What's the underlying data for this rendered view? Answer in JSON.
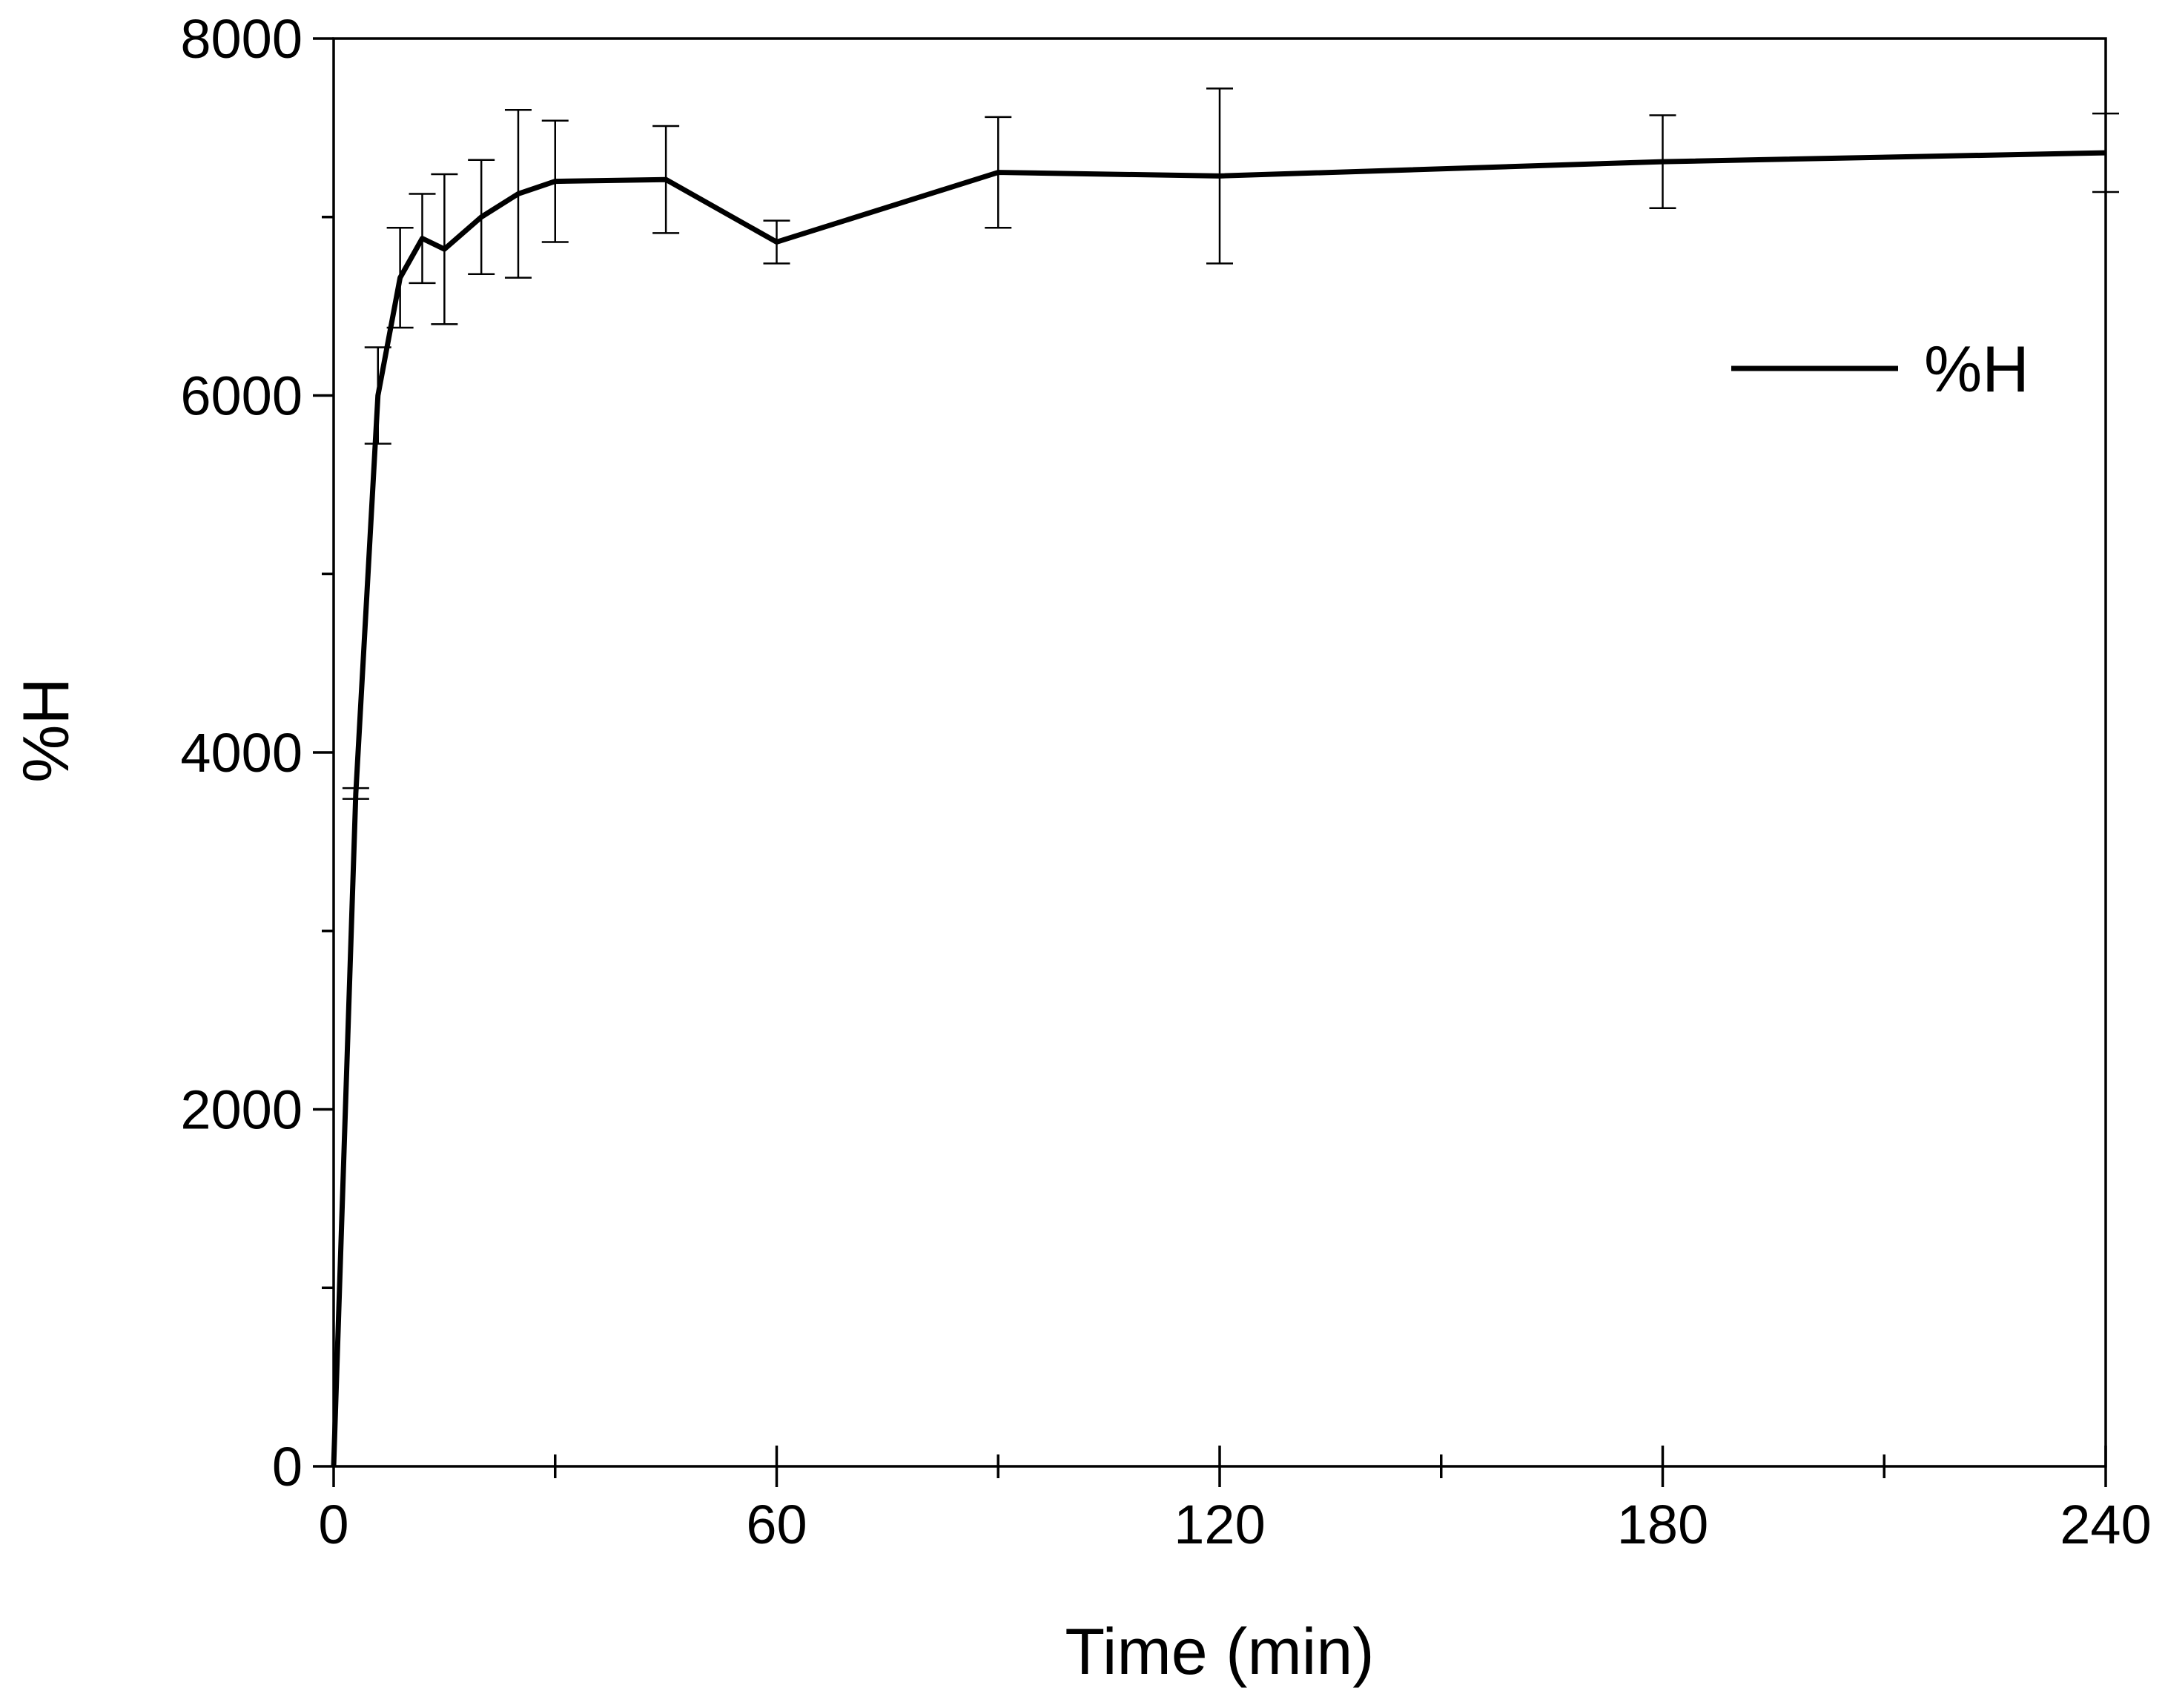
{
  "chart_data": {
    "type": "line",
    "xlabel": "Time (min)",
    "ylabel": "%H",
    "xlim": [
      0,
      240
    ],
    "ylim": [
      0,
      8000
    ],
    "x_ticks": [
      0,
      60,
      120,
      180,
      240
    ],
    "y_ticks": [
      0,
      2000,
      4000,
      6000,
      8000
    ],
    "x_minor_ticks": [
      30,
      90,
      150,
      210
    ],
    "y_minor_ticks": [
      1000,
      3000,
      5000,
      7000
    ],
    "grid": false,
    "legend": {
      "position": "top-right"
    },
    "series": [
      {
        "name": "%H",
        "color": "#000000",
        "x": [
          0,
          3,
          6,
          9,
          12,
          15,
          20,
          25,
          30,
          45,
          60,
          90,
          120,
          180,
          240
        ],
        "y": [
          0,
          3770,
          6000,
          6660,
          6880,
          6820,
          7000,
          7130,
          7200,
          7210,
          6860,
          7250,
          7230,
          7310,
          7360
        ],
        "err": [
          0,
          30,
          270,
          280,
          250,
          420,
          320,
          470,
          340,
          300,
          120,
          310,
          490,
          260,
          220
        ]
      }
    ]
  }
}
